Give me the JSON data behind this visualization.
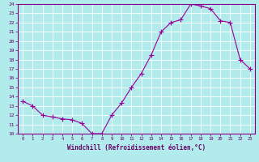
{
  "x": [
    0,
    1,
    2,
    3,
    4,
    5,
    6,
    7,
    8,
    9,
    10,
    11,
    12,
    13,
    14,
    15,
    16,
    17,
    18,
    19,
    20,
    21,
    22,
    23
  ],
  "y": [
    13.5,
    13.0,
    12.0,
    11.8,
    11.6,
    11.5,
    11.1,
    10.0,
    10.0,
    12.0,
    13.3,
    15.0,
    16.5,
    18.5,
    21.0,
    22.0,
    22.3,
    24.0,
    23.8,
    23.5,
    22.2,
    22.0,
    18.0,
    17.0
  ],
  "x_labels": [
    "0",
    "1",
    "2",
    "3",
    "4",
    "5",
    "6",
    "7",
    "8",
    "9",
    "10",
    "11",
    "12",
    "13",
    "14",
    "15",
    "16",
    "17",
    "18",
    "19",
    "20",
    "21",
    "22",
    "23"
  ],
  "xlabel": "Windchill (Refroidissement éolien,°C)",
  "ylim": [
    10,
    24
  ],
  "xlim": [
    -0.5,
    23.5
  ],
  "yticks": [
    10,
    11,
    12,
    13,
    14,
    15,
    16,
    17,
    18,
    19,
    20,
    21,
    22,
    23,
    24
  ],
  "line_color": "#990099",
  "marker_color": "#990099",
  "bg_color": "#b2ebeb",
  "grid_color": "#c8e8e8",
  "tick_label_color": "#660066",
  "xlabel_color": "#660066"
}
